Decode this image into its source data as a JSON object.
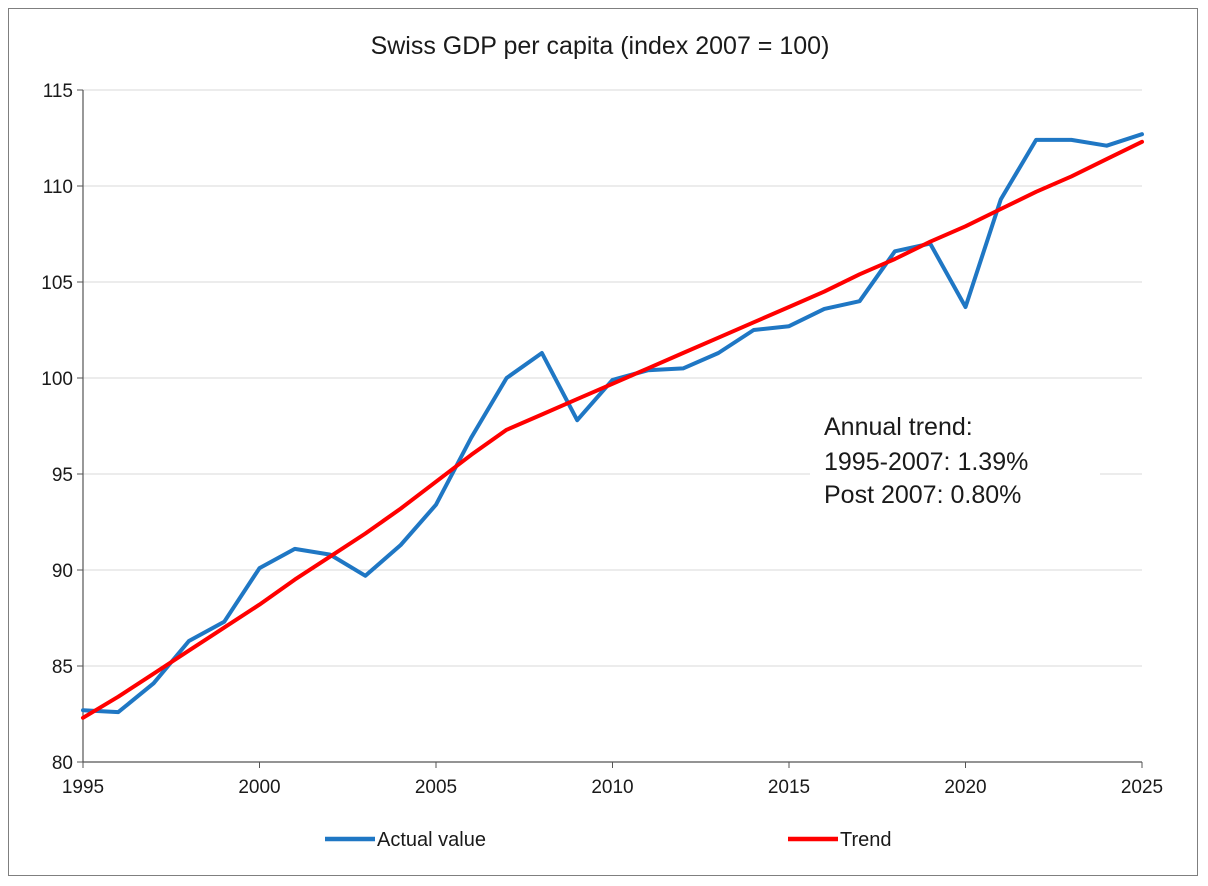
{
  "chart_data": {
    "type": "line",
    "title": "Swiss GDP per capita (index 2007 = 100)",
    "xlabel": "",
    "ylabel": "",
    "xlim": [
      1995,
      2025
    ],
    "ylim": [
      80,
      115
    ],
    "x_ticks": [
      1995,
      2000,
      2005,
      2010,
      2015,
      2020,
      2025
    ],
    "y_ticks": [
      80,
      85,
      90,
      95,
      100,
      105,
      110,
      115
    ],
    "grid": "horizontal",
    "legend_position": "bottom",
    "x": [
      1995,
      1996,
      1997,
      1998,
      1999,
      2000,
      2001,
      2002,
      2003,
      2004,
      2005,
      2006,
      2007,
      2008,
      2009,
      2010,
      2011,
      2012,
      2013,
      2014,
      2015,
      2016,
      2017,
      2018,
      2019,
      2020,
      2021,
      2022,
      2023,
      2024,
      2025
    ],
    "series": [
      {
        "name": "Actual value",
        "color": "#1f77c4",
        "values": [
          82.7,
          82.6,
          84.1,
          86.3,
          87.3,
          90.1,
          91.1,
          90.8,
          89.7,
          91.3,
          93.4,
          96.9,
          100.0,
          101.3,
          97.8,
          99.9,
          100.4,
          100.5,
          101.3,
          102.5,
          102.7,
          103.6,
          104.0,
          106.6,
          107.0,
          103.7,
          109.3,
          112.4,
          112.4,
          112.1,
          112.7
        ]
      },
      {
        "name": "Trend",
        "color": "#ff0000",
        "values": [
          82.3,
          83.4,
          84.6,
          85.8,
          87.0,
          88.2,
          89.5,
          90.7,
          91.9,
          93.2,
          94.6,
          96.0,
          97.3,
          98.1,
          98.9,
          99.7,
          100.5,
          101.3,
          102.1,
          102.9,
          103.7,
          104.5,
          105.4,
          106.2,
          107.1,
          107.9,
          108.8,
          109.7,
          110.5,
          111.4,
          112.3
        ]
      }
    ],
    "annotation": {
      "lines": [
        "Annual trend:",
        "1995-2007: 1.39%",
        "Post 2007: 0.80%"
      ]
    }
  }
}
